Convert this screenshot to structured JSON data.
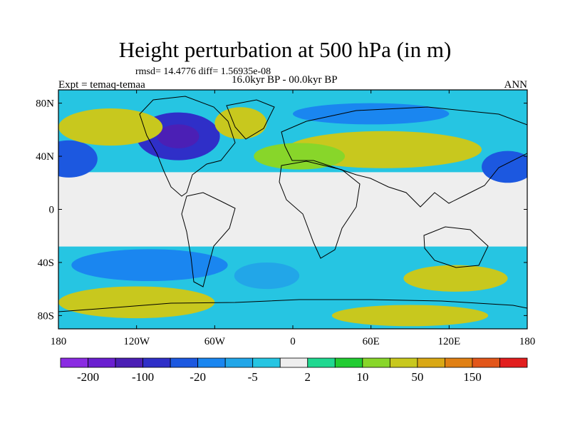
{
  "title": "Height perturbation at 500 hPa (in m)",
  "stats": "rmsd= 14.4776 diff= 1.56935e-08",
  "left_label": "Expt = temaq-temaa",
  "center_label": "16.0kyr BP - 00.0kyr BP",
  "right_label": "ANN",
  "lat_ticks": [
    {
      "value": 80,
      "label": "80N"
    },
    {
      "value": 40,
      "label": "40N"
    },
    {
      "value": 0,
      "label": "0"
    },
    {
      "value": -40,
      "label": "40S"
    },
    {
      "value": -80,
      "label": "80S"
    }
  ],
  "lon_ticks": [
    {
      "value": -180,
      "label": "180"
    },
    {
      "value": -120,
      "label": "120W"
    },
    {
      "value": -60,
      "label": "60W"
    },
    {
      "value": 0,
      "label": "0"
    },
    {
      "value": 60,
      "label": "60E"
    },
    {
      "value": 120,
      "label": "120E"
    },
    {
      "value": 180,
      "label": "180"
    }
  ],
  "colorbar": {
    "colors": [
      "#8a2be2",
      "#6a1fd0",
      "#4b1fb5",
      "#2f2fc8",
      "#1c58e0",
      "#1a86f0",
      "#22a6e8",
      "#26c5e2",
      "#eeeeee",
      "#20d890",
      "#22cc32",
      "#88d62a",
      "#c8c81e",
      "#d9a815",
      "#e08014",
      "#e2561a",
      "#e21e1e"
    ],
    "labels": [
      {
        "boundary": 1,
        "text": "-200"
      },
      {
        "boundary": 3,
        "text": "-100"
      },
      {
        "boundary": 5,
        "text": "-20"
      },
      {
        "boundary": 7,
        "text": "-5"
      },
      {
        "boundary": 9,
        "text": "2"
      },
      {
        "boundary": 11,
        "text": "10"
      },
      {
        "boundary": 13,
        "text": "50"
      },
      {
        "boundary": 15,
        "text": "150"
      }
    ]
  },
  "field_regions": [
    {
      "name": "north-america-low",
      "lon": -88,
      "lat": 55,
      "rlon": 32,
      "rlat": 18,
      "color": "#2f2fc8"
    },
    {
      "name": "north-america-low-core",
      "lon": -88,
      "lat": 55,
      "rlon": 16,
      "rlat": 9,
      "color": "#4b1fb5"
    },
    {
      "name": "north-pacific-low",
      "lon": -172,
      "lat": 38,
      "rlon": 22,
      "rlat": 14,
      "color": "#1c58e0"
    },
    {
      "name": "north-pacific-high",
      "lon": -140,
      "lat": 62,
      "rlon": 40,
      "rlat": 14,
      "color": "#c8c81e"
    },
    {
      "name": "eurasia-ridge",
      "lon": 70,
      "lat": 45,
      "rlon": 75,
      "rlat": 14,
      "color": "#c8c81e"
    },
    {
      "name": "europe-ridge",
      "lon": 5,
      "lat": 40,
      "rlon": 35,
      "rlat": 10,
      "color": "#88d62a"
    },
    {
      "name": "atlantic-ridge",
      "lon": -40,
      "lat": 65,
      "rlon": 20,
      "rlat": 12,
      "color": "#c8c81e"
    },
    {
      "name": "siberia-trough",
      "lon": 60,
      "lat": 72,
      "rlon": 60,
      "rlat": 8,
      "color": "#1a86f0"
    },
    {
      "name": "west-pacific-low",
      "lon": 165,
      "lat": 32,
      "rlon": 20,
      "rlat": 12,
      "color": "#1c58e0"
    },
    {
      "name": "south-pacific-high",
      "lon": -120,
      "lat": -70,
      "rlon": 60,
      "rlat": 12,
      "color": "#c8c81e"
    },
    {
      "name": "southern-ocean-low",
      "lon": -110,
      "lat": -42,
      "rlon": 60,
      "rlat": 12,
      "color": "#1a86f0"
    },
    {
      "name": "south-indian-high",
      "lon": 125,
      "lat": -52,
      "rlon": 40,
      "rlat": 10,
      "color": "#c8c81e"
    },
    {
      "name": "antarctic-high",
      "lon": 90,
      "lat": -80,
      "rlon": 60,
      "rlat": 8,
      "color": "#c8c81e"
    },
    {
      "name": "south-atlantic-low",
      "lon": -20,
      "lat": -50,
      "rlon": 25,
      "rlat": 10,
      "color": "#22a6e8"
    }
  ]
}
